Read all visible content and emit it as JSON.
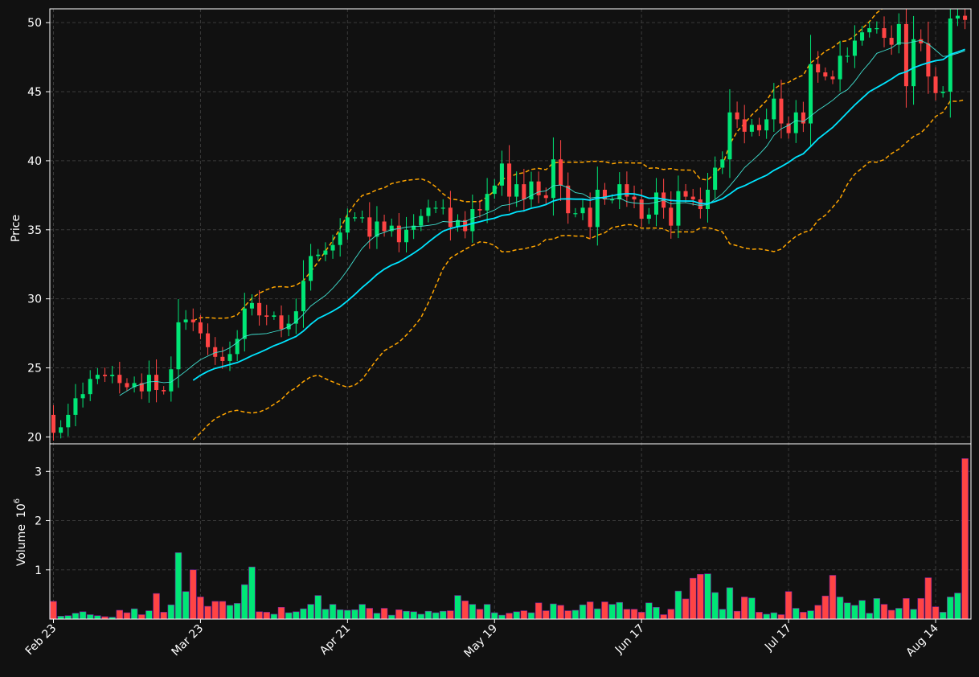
{
  "chart_data": {
    "type": "candlestick",
    "panels": {
      "price": {
        "ylabel": "Price",
        "ylim": [
          19.5,
          51
        ],
        "yticks": [
          20,
          25,
          30,
          35,
          40,
          45,
          50
        ]
      },
      "volume": {
        "ylabel": "Volume",
        "exponent_label": "10",
        "exponent_power": "6",
        "ylim": [
          0,
          3.56
        ],
        "yticks": [
          1,
          2,
          3
        ]
      }
    },
    "xticks": [
      {
        "index": 0,
        "label": "Feb 23"
      },
      {
        "index": 20,
        "label": "Mar 23"
      },
      {
        "index": 40,
        "label": "Apr 21"
      },
      {
        "index": 60,
        "label": "May 19"
      },
      {
        "index": 80,
        "label": "Jun 17"
      },
      {
        "index": 100,
        "label": "Jul 17"
      },
      {
        "index": 120,
        "label": "Aug 14"
      }
    ],
    "n_bars": 125,
    "colors": {
      "up": "#00e676",
      "down": "#ff4444",
      "ma_fast": "#40e0d0",
      "ma_slow": "#00e5ff",
      "bands": "#ffa500",
      "grid": "#3a3a3a",
      "frame": "#ffffff",
      "background": "#111111"
    },
    "ma_fast_start": 9,
    "ma_slow_start": 19,
    "band_start": 19,
    "close_keys": [
      [
        0,
        20.3
      ],
      [
        1,
        20.7
      ],
      [
        2,
        21.6
      ],
      [
        3,
        22.8
      ],
      [
        4,
        23.1
      ],
      [
        5,
        24.2
      ],
      [
        6,
        24.5
      ],
      [
        7,
        24.4
      ],
      [
        8,
        24.5
      ],
      [
        9,
        23.9
      ],
      [
        10,
        23.6
      ],
      [
        11,
        23.9
      ],
      [
        12,
        23.3
      ],
      [
        13,
        24.5
      ],
      [
        14,
        23.4
      ],
      [
        15,
        23.3
      ],
      [
        16,
        24.9
      ],
      [
        17,
        28.3
      ],
      [
        18,
        28.5
      ],
      [
        19,
        28.3
      ],
      [
        20,
        27.5
      ],
      [
        21,
        26.5
      ],
      [
        22,
        25.8
      ],
      [
        23,
        25.5
      ],
      [
        24,
        26.0
      ],
      [
        25,
        27.1
      ],
      [
        26,
        29.3
      ],
      [
        27,
        29.7
      ],
      [
        28,
        28.8
      ],
      [
        29,
        28.7
      ],
      [
        30,
        28.8
      ],
      [
        31,
        27.8
      ],
      [
        32,
        28.2
      ],
      [
        33,
        29.1
      ],
      [
        34,
        31.3
      ],
      [
        35,
        33.1
      ],
      [
        36,
        33.2
      ],
      [
        37,
        33.5
      ],
      [
        38,
        33.9
      ],
      [
        39,
        34.8
      ],
      [
        40,
        35.9
      ],
      [
        41,
        35.9
      ],
      [
        42,
        35.9
      ],
      [
        43,
        34.5
      ],
      [
        44,
        35.6
      ],
      [
        45,
        34.9
      ],
      [
        46,
        35.3
      ],
      [
        47,
        34.1
      ],
      [
        48,
        35.0
      ],
      [
        49,
        35.3
      ],
      [
        50,
        36.0
      ],
      [
        51,
        36.6
      ],
      [
        52,
        36.6
      ],
      [
        53,
        36.6
      ],
      [
        54,
        35.2
      ],
      [
        55,
        35.7
      ],
      [
        56,
        34.9
      ],
      [
        57,
        36.5
      ],
      [
        58,
        36.4
      ],
      [
        59,
        37.6
      ],
      [
        60,
        38.2
      ],
      [
        61,
        39.8
      ],
      [
        62,
        37.4
      ],
      [
        63,
        38.3
      ],
      [
        64,
        37.2
      ],
      [
        65,
        38.5
      ],
      [
        66,
        37.5
      ],
      [
        67,
        37.3
      ],
      [
        68,
        40.1
      ],
      [
        69,
        38.2
      ],
      [
        70,
        36.2
      ],
      [
        71,
        36.2
      ],
      [
        72,
        36.6
      ],
      [
        73,
        35.2
      ],
      [
        74,
        37.9
      ],
      [
        75,
        37.2
      ],
      [
        76,
        37.2
      ],
      [
        77,
        38.3
      ],
      [
        78,
        37.4
      ],
      [
        79,
        37.2
      ],
      [
        80,
        35.8
      ],
      [
        81,
        36.1
      ],
      [
        82,
        37.7
      ],
      [
        83,
        36.6
      ],
      [
        84,
        35.3
      ],
      [
        85,
        37.8
      ],
      [
        86,
        37.4
      ],
      [
        87,
        37.2
      ],
      [
        88,
        36.5
      ],
      [
        89,
        37.9
      ],
      [
        90,
        39.5
      ],
      [
        91,
        40.1
      ],
      [
        92,
        43.5
      ],
      [
        93,
        43.0
      ],
      [
        94,
        42.1
      ],
      [
        95,
        42.6
      ],
      [
        96,
        42.2
      ],
      [
        97,
        43.0
      ],
      [
        98,
        44.5
      ],
      [
        99,
        42.7
      ],
      [
        100,
        42.0
      ],
      [
        101,
        43.5
      ],
      [
        102,
        42.7
      ],
      [
        103,
        47.0
      ],
      [
        104,
        46.4
      ],
      [
        105,
        46.1
      ],
      [
        106,
        45.9
      ],
      [
        107,
        47.6
      ],
      [
        108,
        47.6
      ],
      [
        109,
        48.7
      ],
      [
        110,
        49.3
      ],
      [
        111,
        49.6
      ],
      [
        112,
        49.6
      ],
      [
        113,
        48.9
      ],
      [
        114,
        48.4
      ],
      [
        115,
        49.9
      ],
      [
        116,
        45.4
      ],
      [
        117,
        48.8
      ],
      [
        118,
        48.5
      ],
      [
        119,
        46.1
      ],
      [
        120,
        44.9
      ],
      [
        121,
        45.0
      ],
      [
        122,
        50.3
      ],
      [
        123,
        50.5
      ],
      [
        124,
        50.2
      ]
    ],
    "volume_keys": [
      [
        0,
        0.36
      ],
      [
        1,
        0.06
      ],
      [
        2,
        0.07
      ],
      [
        3,
        0.12
      ],
      [
        4,
        0.15
      ],
      [
        5,
        0.09
      ],
      [
        6,
        0.07
      ],
      [
        7,
        0.05
      ],
      [
        8,
        0.04
      ],
      [
        9,
        0.18
      ],
      [
        10,
        0.13
      ],
      [
        11,
        0.21
      ],
      [
        12,
        0.09
      ],
      [
        13,
        0.17
      ],
      [
        14,
        0.52
      ],
      [
        15,
        0.14
      ],
      [
        16,
        0.29
      ],
      [
        17,
        1.35
      ],
      [
        18,
        0.56
      ],
      [
        19,
        1.0
      ],
      [
        20,
        0.45
      ],
      [
        21,
        0.26
      ],
      [
        22,
        0.36
      ],
      [
        23,
        0.36
      ],
      [
        24,
        0.28
      ],
      [
        25,
        0.32
      ],
      [
        26,
        0.7
      ],
      [
        27,
        1.06
      ],
      [
        28,
        0.15
      ],
      [
        29,
        0.14
      ],
      [
        30,
        0.1
      ],
      [
        31,
        0.24
      ],
      [
        32,
        0.13
      ],
      [
        33,
        0.15
      ],
      [
        34,
        0.21
      ],
      [
        35,
        0.3
      ],
      [
        36,
        0.48
      ],
      [
        37,
        0.2
      ],
      [
        38,
        0.3
      ],
      [
        39,
        0.19
      ],
      [
        40,
        0.18
      ],
      [
        41,
        0.19
      ],
      [
        42,
        0.3
      ],
      [
        43,
        0.22
      ],
      [
        44,
        0.12
      ],
      [
        45,
        0.22
      ],
      [
        46,
        0.08
      ],
      [
        47,
        0.19
      ],
      [
        48,
        0.16
      ],
      [
        49,
        0.15
      ],
      [
        50,
        0.1
      ],
      [
        51,
        0.16
      ],
      [
        52,
        0.13
      ],
      [
        53,
        0.16
      ],
      [
        54,
        0.17
      ],
      [
        55,
        0.48
      ],
      [
        56,
        0.37
      ],
      [
        57,
        0.3
      ],
      [
        58,
        0.2
      ],
      [
        59,
        0.3
      ],
      [
        60,
        0.13
      ],
      [
        61,
        0.08
      ],
      [
        62,
        0.12
      ],
      [
        63,
        0.15
      ],
      [
        64,
        0.17
      ],
      [
        65,
        0.13
      ],
      [
        66,
        0.33
      ],
      [
        67,
        0.17
      ],
      [
        68,
        0.31
      ],
      [
        69,
        0.28
      ],
      [
        70,
        0.17
      ],
      [
        71,
        0.18
      ],
      [
        72,
        0.29
      ],
      [
        73,
        0.35
      ],
      [
        74,
        0.21
      ],
      [
        75,
        0.35
      ],
      [
        76,
        0.3
      ],
      [
        77,
        0.34
      ],
      [
        78,
        0.2
      ],
      [
        79,
        0.2
      ],
      [
        80,
        0.14
      ],
      [
        81,
        0.33
      ],
      [
        82,
        0.24
      ],
      [
        83,
        0.09
      ],
      [
        84,
        0.2
      ],
      [
        85,
        0.57
      ],
      [
        86,
        0.41
      ],
      [
        87,
        0.83
      ],
      [
        88,
        0.91
      ],
      [
        89,
        0.92
      ],
      [
        90,
        0.54
      ],
      [
        91,
        0.2
      ],
      [
        92,
        0.64
      ],
      [
        93,
        0.16
      ],
      [
        94,
        0.45
      ],
      [
        95,
        0.43
      ],
      [
        96,
        0.14
      ],
      [
        97,
        0.1
      ],
      [
        98,
        0.13
      ],
      [
        99,
        0.09
      ],
      [
        100,
        0.56
      ],
      [
        101,
        0.22
      ],
      [
        102,
        0.14
      ],
      [
        103,
        0.17
      ],
      [
        104,
        0.28
      ],
      [
        105,
        0.47
      ],
      [
        106,
        0.89
      ],
      [
        107,
        0.45
      ],
      [
        108,
        0.33
      ],
      [
        109,
        0.28
      ],
      [
        110,
        0.38
      ],
      [
        111,
        0.12
      ],
      [
        112,
        0.42
      ],
      [
        113,
        0.3
      ],
      [
        114,
        0.18
      ],
      [
        115,
        0.22
      ],
      [
        116,
        0.42
      ],
      [
        117,
        0.2
      ],
      [
        118,
        0.42
      ],
      [
        119,
        0.84
      ],
      [
        120,
        0.25
      ],
      [
        121,
        0.14
      ],
      [
        122,
        0.45
      ],
      [
        123,
        0.53
      ],
      [
        124,
        3.26
      ]
    ],
    "annotations": []
  }
}
